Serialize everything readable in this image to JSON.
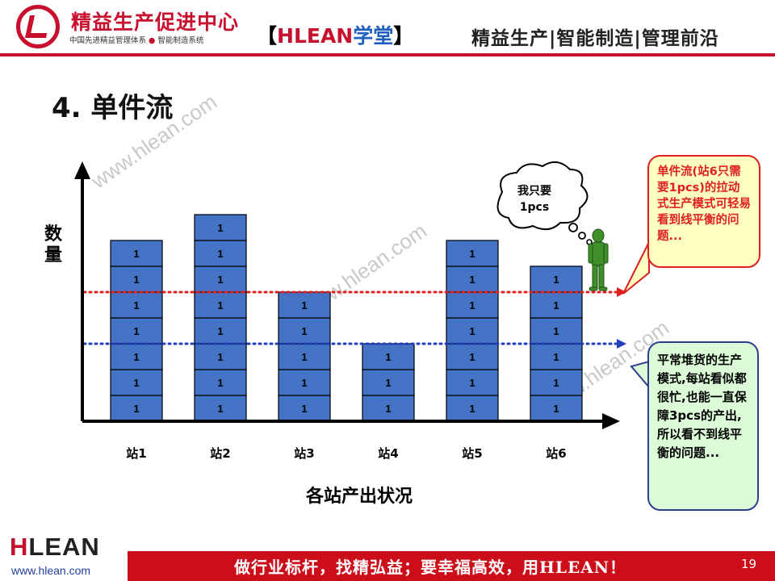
{
  "header": {
    "brand_name": "精益生产促进中心",
    "brand_sub_a": "中国先进精益管理体系",
    "brand_sub_dot": "●",
    "brand_sub_b": "智能制造系统",
    "mid_open": "【",
    "mid_h": "H",
    "mid_lean": "LEAN",
    "mid_xt": "学堂",
    "mid_close": "】",
    "right": "精益生产|智能制造|管理前沿"
  },
  "title": "4. 单件流",
  "watermark": "www.hlean.com",
  "chart_data": {
    "type": "bar",
    "categories": [
      "站1",
      "站2",
      "站3",
      "站4",
      "站5",
      "站6"
    ],
    "values": [
      7,
      8,
      5,
      3,
      7,
      6
    ],
    "cell_label": "1",
    "ylabel": "数量",
    "xlabel": "各站产出状况",
    "reference_lines": [
      {
        "name": "单件流",
        "value": 5,
        "color": "#e02020",
        "style": "dotted"
      },
      {
        "name": "平常堆货",
        "value": 3,
        "color": "#1f3fbf",
        "style": "dotted"
      }
    ],
    "bar_color": "#4472c4",
    "ylim": [
      0,
      11
    ]
  },
  "thought": {
    "line1": "我只要",
    "line2": "1pcs"
  },
  "callout_single": "单件流(站6只需要1pcs)的拉动式生产模式可轻易看到线平衡的问题...",
  "callout_batch": "平常堆货的生产模式,每站看似都很忙,也能一直保障3pcs的产出,所以看不到线平衡的问题...",
  "footer": {
    "logo_h": "H",
    "logo_rest": "LEAN",
    "url": "www.hlean.com",
    "slogan": "做行业标杆，找精弘益；要幸福高效，用HLEAN！",
    "page": "19"
  },
  "colors": {
    "brand_red": "#c8102e",
    "bar_blue": "#4472c4"
  }
}
